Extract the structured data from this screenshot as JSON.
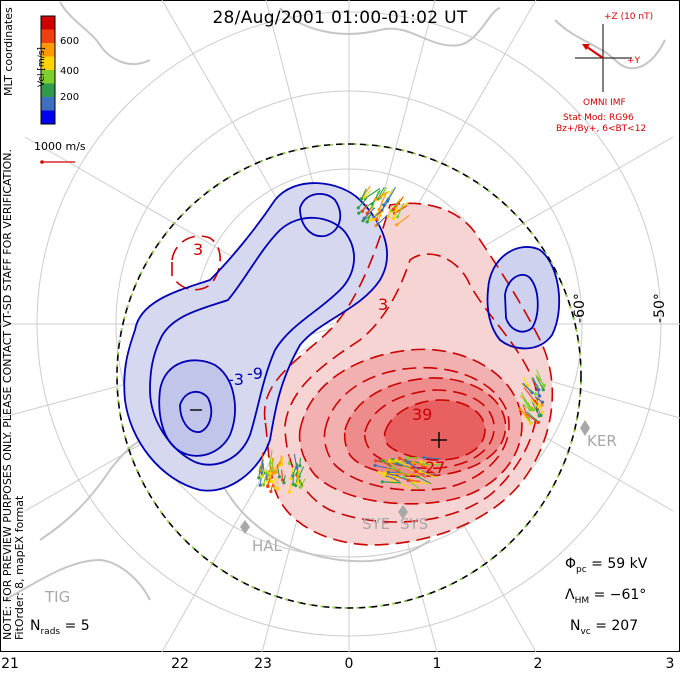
{
  "title": "28/Aug/2001 01:00-01:02 UT",
  "colorbar": {
    "unit_label": "Vel [m/s]",
    "ticks": [
      "600",
      "400",
      "200"
    ],
    "colors": [
      "#0000ee",
      "#3f6fbf",
      "#2e9c4c",
      "#7ccf2c",
      "#ffd400",
      "#ff9a00",
      "#f04010",
      "#d00000"
    ]
  },
  "side_labels": {
    "coordinates": "MLT coordinates",
    "note_line1": "NOTE: FOR PREVIEW PURPOSES ONLY. PLEASE CONTACT VT-SD STAFF FOR VERIFICATION.",
    "note_line2": "FitOrder: 8, mapEX format"
  },
  "scale_vector": {
    "label": "1000 m/s"
  },
  "imf": {
    "z_label": "+Z (10 nT)",
    "y_label": "+Y",
    "source": "OMNI IMF",
    "stat_mod": "Stat Mod: RG96",
    "conditions": "Bz+/By+, 6<BT<12"
  },
  "stats": {
    "phi_symbol": "Φ",
    "phi_sub": "pc",
    "phi_value": "= 59 kV",
    "lambda_symbol": "Λ",
    "lambda_sub": "HM",
    "lambda_value": "= −61°",
    "nvc_symbol": "N",
    "nvc_sub": "vc",
    "nvc_value": "= 207",
    "nrads_symbol": "N",
    "nrads_sub": "rads",
    "nrads_value": "= 5"
  },
  "mlt_ticks": [
    "21",
    "22",
    "23",
    "0",
    "1",
    "2",
    "3"
  ],
  "lat_labels": [
    "-60°",
    "-50°"
  ],
  "stations": [
    "KER",
    "SYE",
    "SYS",
    "HAL",
    "TIG"
  ],
  "contour_labels": [
    "3",
    "3",
    "-3",
    "-9",
    "39",
    "27"
  ],
  "colors": {
    "positive_contour": "#cc0000",
    "negative_contour": "#0000b4",
    "positive_fill": "#f2a0a0",
    "negative_fill": "#b8bce6",
    "coast": "#c8c8c8",
    "grid": "#c8c8c8",
    "imf_red": "#d40000"
  },
  "map_data": {
    "coordinate_system": "MLT",
    "hemisphere": "south",
    "potential_max_label": "39",
    "potential_min_label": "-9"
  }
}
